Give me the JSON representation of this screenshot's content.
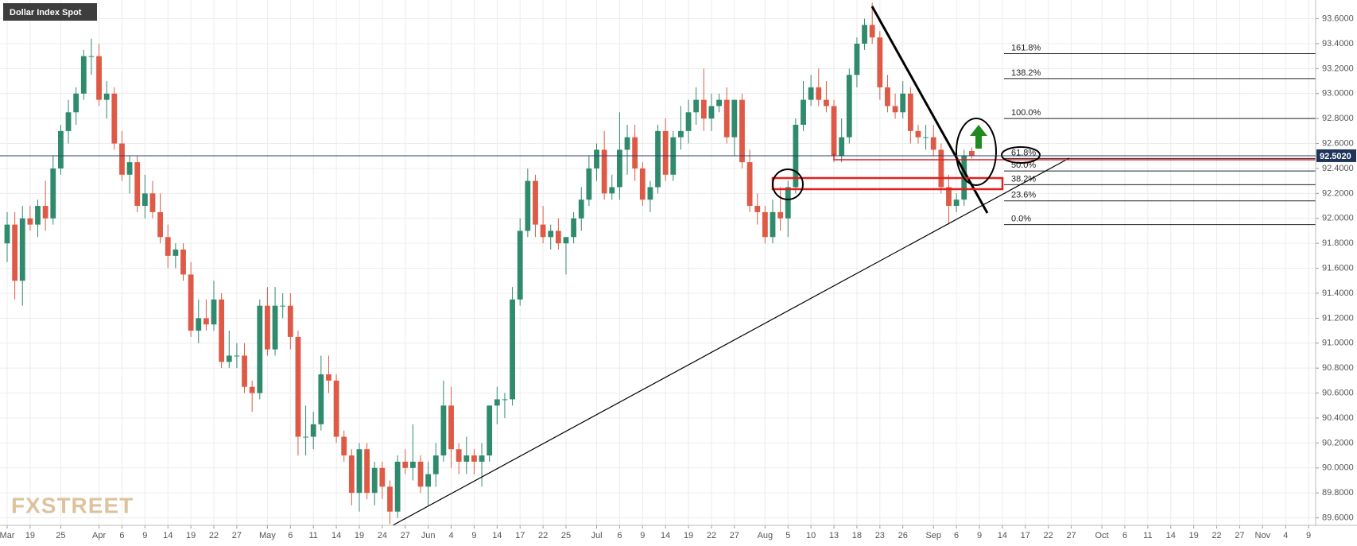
{
  "chart_data": {
    "type": "candlestick",
    "title": "Dollar Index Spot",
    "watermark": "FXSTREET",
    "categories": [
      "Mar",
      null,
      null,
      "19",
      null,
      null,
      null,
      "25",
      null,
      null,
      null,
      null,
      "Apr",
      null,
      null,
      "6",
      null,
      null,
      "9",
      null,
      null,
      "14",
      null,
      null,
      "19",
      null,
      null,
      "22",
      null,
      null,
      "27",
      null,
      null,
      null,
      "May",
      null,
      null,
      "6",
      null,
      null,
      "11",
      null,
      null,
      "14",
      null,
      null,
      "19",
      null,
      null,
      "24",
      null,
      null,
      "27",
      null,
      null,
      "Jun",
      null,
      null,
      "4",
      null,
      null,
      "9",
      null,
      null,
      "14",
      null,
      null,
      "17",
      null,
      null,
      "22",
      null,
      null,
      "25",
      null,
      null,
      null,
      "Jul",
      null,
      null,
      "6",
      null,
      null,
      "9",
      null,
      null,
      "14",
      null,
      null,
      "19",
      null,
      null,
      "22",
      null,
      null,
      "27",
      null,
      null,
      null,
      "Aug",
      null,
      null,
      "5",
      null,
      null,
      "10",
      null,
      null,
      "13",
      null,
      null,
      "18",
      null,
      null,
      "23",
      null,
      null,
      "26",
      null,
      null,
      null,
      "Sep",
      null,
      null,
      "6",
      null,
      null,
      "9",
      null,
      null,
      "14",
      null,
      null,
      "17",
      null,
      null,
      "22",
      null,
      null,
      "27",
      null,
      null,
      null,
      "Oct",
      null,
      null,
      "6",
      null,
      null,
      "11",
      null,
      null,
      "14",
      null,
      null,
      "19",
      null,
      null,
      "22",
      null,
      null,
      "27",
      null,
      null,
      "Nov",
      null,
      null,
      "4",
      null,
      null,
      "9"
    ],
    "open": [
      91.8,
      91.95,
      91.5,
      92.0,
      91.95,
      92.1,
      92.0,
      92.4,
      92.7,
      92.85,
      93.0,
      93.3,
      93.3,
      92.95,
      93.0,
      92.6,
      92.35,
      92.45,
      92.1,
      92.2,
      92.05,
      91.85,
      91.7,
      91.75,
      91.55,
      91.1,
      91.2,
      91.15,
      91.35,
      90.85,
      90.9,
      90.9,
      90.65,
      90.6,
      91.3,
      90.95,
      91.3,
      91.3,
      91.05,
      90.25,
      90.25,
      90.35,
      90.75,
      90.7,
      90.25,
      90.1,
      89.8,
      90.15,
      89.8,
      90.0,
      89.85,
      89.65,
      90.05,
      90.0,
      90.05,
      89.85,
      89.95,
      90.1,
      90.5,
      90.15,
      90.05,
      90.1,
      90.05,
      90.1,
      90.5,
      90.55,
      90.55,
      91.35,
      91.9,
      92.3,
      91.95,
      91.85,
      91.9,
      91.8,
      91.85,
      92.0,
      92.15,
      92.4,
      92.55,
      92.2,
      92.25,
      92.55,
      92.65,
      92.4,
      92.15,
      92.25,
      92.7,
      92.35,
      92.65,
      92.7,
      92.85,
      92.95,
      92.8,
      92.9,
      92.95,
      92.65,
      92.95,
      92.45,
      92.1,
      92.05,
      91.85,
      92.05,
      92.0,
      92.25,
      92.75,
      92.95,
      93.05,
      92.95,
      92.9,
      92.5,
      92.65,
      93.15,
      93.4,
      93.55,
      93.45,
      93.05,
      92.9,
      92.85,
      93.0,
      92.7,
      92.65,
      92.65,
      92.55,
      92.25,
      92.1,
      92.15,
      92.54,
      null,
      null,
      null,
      null,
      null,
      null,
      null,
      null,
      null,
      null,
      null,
      null,
      null,
      null,
      null,
      null,
      null,
      null,
      null,
      null,
      null,
      null,
      null,
      null,
      null,
      null,
      null,
      null,
      null,
      null,
      null,
      null,
      null,
      null,
      null,
      null,
      null,
      null,
      null,
      null,
      null,
      null,
      null,
      null
    ],
    "high": [
      92.05,
      92.05,
      92.1,
      92.1,
      92.15,
      92.3,
      92.5,
      92.75,
      92.95,
      93.05,
      93.35,
      93.44,
      93.4,
      93.1,
      93.05,
      92.7,
      92.5,
      92.5,
      92.35,
      92.3,
      92.2,
      91.95,
      91.8,
      91.8,
      91.65,
      91.35,
      91.35,
      91.5,
      91.4,
      91.1,
      91.0,
      91.0,
      90.7,
      91.35,
      91.45,
      91.45,
      91.4,
      91.4,
      91.1,
      90.5,
      90.45,
      90.9,
      90.9,
      90.75,
      90.3,
      90.15,
      90.2,
      90.2,
      90.05,
      90.05,
      89.9,
      90.1,
      90.15,
      90.35,
      90.1,
      90.05,
      90.2,
      90.7,
      90.65,
      90.2,
      90.25,
      90.15,
      90.2,
      90.5,
      90.65,
      90.6,
      91.45,
      92.0,
      92.4,
      92.35,
      92.1,
      91.95,
      92.0,
      91.85,
      92.05,
      92.25,
      92.5,
      92.6,
      92.7,
      92.35,
      92.85,
      92.75,
      92.75,
      92.45,
      92.3,
      92.75,
      92.8,
      92.7,
      92.9,
      92.95,
      93.05,
      93.2,
      93.0,
      93.0,
      93.05,
      92.95,
      93.0,
      92.55,
      92.2,
      92.1,
      92.15,
      92.25,
      92.3,
      92.8,
      93.1,
      93.15,
      93.2,
      93.1,
      92.95,
      92.8,
      93.2,
      93.45,
      93.6,
      93.73,
      93.5,
      93.15,
      93.0,
      93.1,
      93.05,
      92.75,
      92.75,
      92.75,
      92.6,
      92.35,
      92.2,
      92.55,
      92.57,
      null,
      null,
      null,
      null,
      null,
      null,
      null,
      null,
      null,
      null,
      null,
      null,
      null,
      null,
      null,
      null,
      null,
      null,
      null,
      null,
      null,
      null,
      null,
      null,
      null,
      null,
      null,
      null,
      null,
      null,
      null,
      null,
      null,
      null,
      null,
      null,
      null,
      null,
      null,
      null,
      null,
      null,
      null,
      null
    ],
    "low": [
      91.65,
      91.35,
      91.3,
      91.9,
      91.85,
      91.9,
      91.95,
      92.35,
      92.6,
      92.75,
      92.95,
      93.15,
      92.9,
      92.8,
      92.55,
      92.3,
      92.2,
      92.05,
      92.0,
      92.0,
      91.8,
      91.6,
      91.6,
      91.5,
      91.05,
      91.0,
      91.1,
      91.1,
      90.8,
      90.8,
      90.8,
      90.6,
      90.45,
      90.55,
      90.9,
      90.9,
      91.2,
      90.95,
      90.1,
      90.1,
      90.15,
      90.3,
      90.6,
      90.2,
      90.05,
      89.7,
      89.65,
      89.75,
      89.7,
      89.75,
      89.55,
      89.6,
      89.95,
      89.9,
      89.8,
      89.7,
      89.85,
      90.05,
      90.0,
      89.95,
      89.95,
      89.95,
      89.85,
      90.05,
      90.35,
      90.4,
      90.5,
      91.3,
      91.85,
      91.85,
      91.8,
      91.75,
      91.75,
      91.55,
      91.8,
      91.9,
      92.1,
      92.3,
      92.15,
      92.15,
      92.15,
      92.35,
      92.3,
      92.1,
      92.05,
      92.2,
      92.3,
      92.3,
      92.55,
      92.6,
      92.75,
      92.7,
      92.7,
      92.85,
      92.6,
      92.5,
      92.4,
      92.05,
      91.95,
      91.8,
      91.8,
      91.9,
      91.85,
      92.2,
      92.7,
      92.9,
      92.9,
      92.85,
      92.45,
      92.45,
      92.6,
      93.05,
      93.35,
      93.4,
      92.95,
      92.85,
      92.8,
      92.8,
      92.6,
      92.6,
      92.55,
      92.5,
      92.2,
      91.95,
      92.05,
      92.1,
      92.48,
      null,
      null,
      null,
      null,
      null,
      null,
      null,
      null,
      null,
      null,
      null,
      null,
      null,
      null,
      null,
      null,
      null,
      null,
      null,
      null,
      null,
      null,
      null,
      null,
      null,
      null,
      null,
      null,
      null,
      null,
      null,
      null,
      null,
      null,
      null,
      null,
      null,
      null,
      null,
      null,
      null,
      null,
      null,
      null
    ],
    "close": [
      91.95,
      91.5,
      92.0,
      91.95,
      92.1,
      92.0,
      92.4,
      92.7,
      92.85,
      93.0,
      93.3,
      93.3,
      92.95,
      93.0,
      92.6,
      92.35,
      92.45,
      92.1,
      92.2,
      92.05,
      91.85,
      91.7,
      91.75,
      91.55,
      91.1,
      91.2,
      91.15,
      91.35,
      90.85,
      90.9,
      90.9,
      90.65,
      90.6,
      91.3,
      90.95,
      91.3,
      91.3,
      91.05,
      90.25,
      90.25,
      90.35,
      90.75,
      90.7,
      90.25,
      90.1,
      89.8,
      90.15,
      89.8,
      90.0,
      89.85,
      89.65,
      90.05,
      90.0,
      90.05,
      89.85,
      89.95,
      90.1,
      90.5,
      90.15,
      90.05,
      90.1,
      90.05,
      90.1,
      90.5,
      90.55,
      90.55,
      91.35,
      91.9,
      92.3,
      91.95,
      91.85,
      91.9,
      91.8,
      91.85,
      92.0,
      92.15,
      92.4,
      92.55,
      92.2,
      92.25,
      92.55,
      92.65,
      92.4,
      92.15,
      92.25,
      92.7,
      92.35,
      92.65,
      92.7,
      92.85,
      92.95,
      92.8,
      92.9,
      92.95,
      92.65,
      92.95,
      92.45,
      92.1,
      92.05,
      91.85,
      92.05,
      92.0,
      92.25,
      92.75,
      92.95,
      93.05,
      92.95,
      92.9,
      92.5,
      92.65,
      93.15,
      93.4,
      93.55,
      93.45,
      93.05,
      92.9,
      92.85,
      93.0,
      92.7,
      92.65,
      92.65,
      92.55,
      92.25,
      92.1,
      92.15,
      92.5,
      92.502,
      null,
      null,
      null,
      null,
      null,
      null,
      null,
      null,
      null,
      null,
      null,
      null,
      null,
      null,
      null,
      null,
      null,
      null,
      null,
      null,
      null,
      null,
      null,
      null,
      null,
      null,
      null,
      null,
      null,
      null,
      null,
      null,
      null,
      null,
      null,
      null,
      null,
      null,
      null,
      null,
      null,
      null,
      null,
      null
    ],
    "up_color": "#2f8a6e",
    "down_color": "#de5a46",
    "ylim": [
      89.54,
      93.75
    ],
    "yticks": [
      {
        "value": 89.6,
        "label": "89.6000"
      },
      {
        "value": 89.8,
        "label": "89.8000"
      },
      {
        "value": 90.0,
        "label": "90.0000"
      },
      {
        "value": 90.2,
        "label": "90.2000"
      },
      {
        "value": 90.4,
        "label": "90.4000"
      },
      {
        "value": 90.6,
        "label": "90.6000"
      },
      {
        "value": 90.8,
        "label": "90.8000"
      },
      {
        "value": 91.0,
        "label": "91.0000"
      },
      {
        "value": 91.2,
        "label": "91.2000"
      },
      {
        "value": 91.4,
        "label": "91.4000"
      },
      {
        "value": 91.6,
        "label": "91.6000"
      },
      {
        "value": 91.8,
        "label": "91.8000"
      },
      {
        "value": 92.0,
        "label": "92.0000"
      },
      {
        "value": 92.2,
        "label": "92.2000"
      },
      {
        "value": 92.4,
        "label": "92.4000"
      },
      {
        "value": 92.6,
        "label": "92.6000"
      },
      {
        "value": 92.8,
        "label": "92.8000"
      },
      {
        "value": 93.0,
        "label": "93.0000"
      },
      {
        "value": 93.2,
        "label": "93.2000"
      },
      {
        "value": 93.4,
        "label": "93.4000"
      },
      {
        "value": 93.6,
        "label": "93.6000"
      }
    ],
    "grid": true,
    "last_price": {
      "value": 92.502,
      "label": "92.5020"
    },
    "fib_levels": [
      {
        "label": "161.8%",
        "value": 93.32
      },
      {
        "label": "138.2%",
        "value": 93.12
      },
      {
        "label": "100.0%",
        "value": 92.8
      },
      {
        "label": "61.8%",
        "value": 92.48
      },
      {
        "label": "50.0%",
        "value": 92.38
      },
      {
        "label": "38.2%",
        "value": 92.27
      },
      {
        "label": "23.6%",
        "value": 92.14
      },
      {
        "label": "0.0%",
        "value": 91.95
      }
    ]
  }
}
